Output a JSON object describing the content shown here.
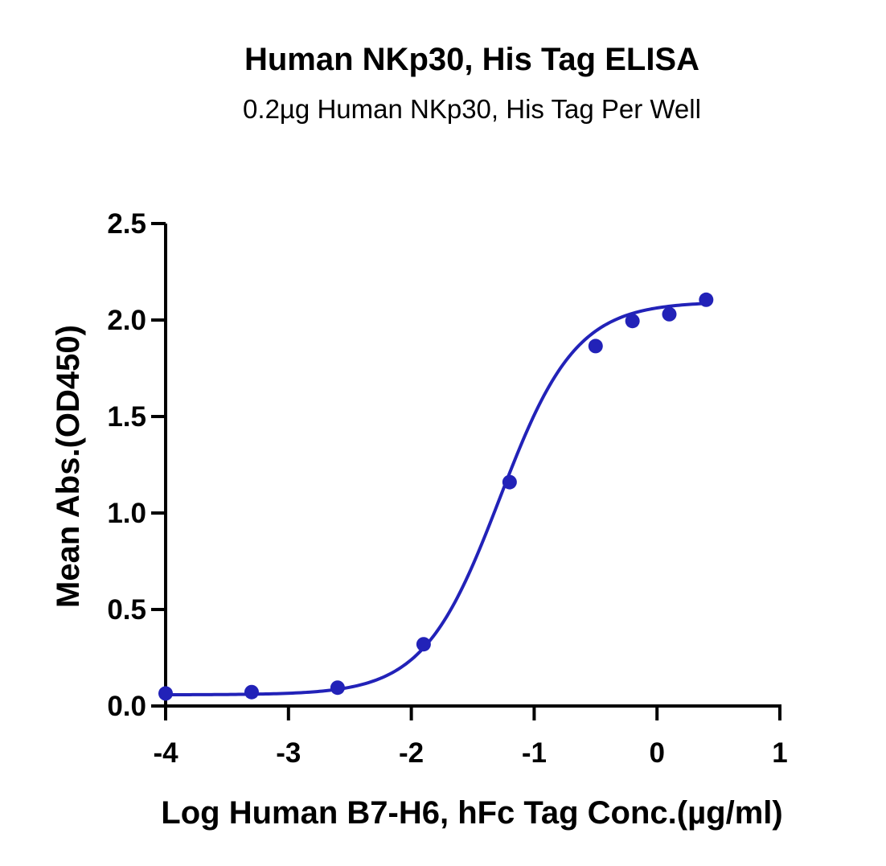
{
  "chart_data": {
    "type": "scatter",
    "title": "Human NKp30, His Tag ELISA",
    "subtitle": "0.2µg Human NKp30, His Tag Per Well",
    "xlabel": "Log Human B7-H6, hFc Tag Conc.(µg/ml)",
    "ylabel": "Mean Abs.(OD450)",
    "xlim": [
      -4,
      1
    ],
    "ylim": [
      0,
      2.5
    ],
    "xticks": [
      "-4",
      "-3",
      "-2",
      "-1",
      "0",
      "1"
    ],
    "yticks": [
      "0.0",
      "0.5",
      "1.0",
      "1.5",
      "2.0",
      "2.5"
    ],
    "grid": false,
    "series": [
      {
        "points": [
          {
            "x": -4.0,
            "y": 0.065
          },
          {
            "x": -3.3,
            "y": 0.072
          },
          {
            "x": -2.6,
            "y": 0.095
          },
          {
            "x": -1.9,
            "y": 0.32
          },
          {
            "x": -1.2,
            "y": 1.16
          },
          {
            "x": -0.5,
            "y": 1.865
          },
          {
            "x": -0.2,
            "y": 1.995
          },
          {
            "x": 0.1,
            "y": 2.03
          },
          {
            "x": 0.4,
            "y": 2.105
          }
        ],
        "fit": {
          "model": "4PL",
          "bottom": 0.058,
          "top": 2.095,
          "logEC50": -1.28,
          "hill": 1.4,
          "xrange": [
            -4,
            0.4
          ]
        }
      }
    ],
    "colors": {
      "series": "#2222b8",
      "axis": "#000000"
    }
  }
}
